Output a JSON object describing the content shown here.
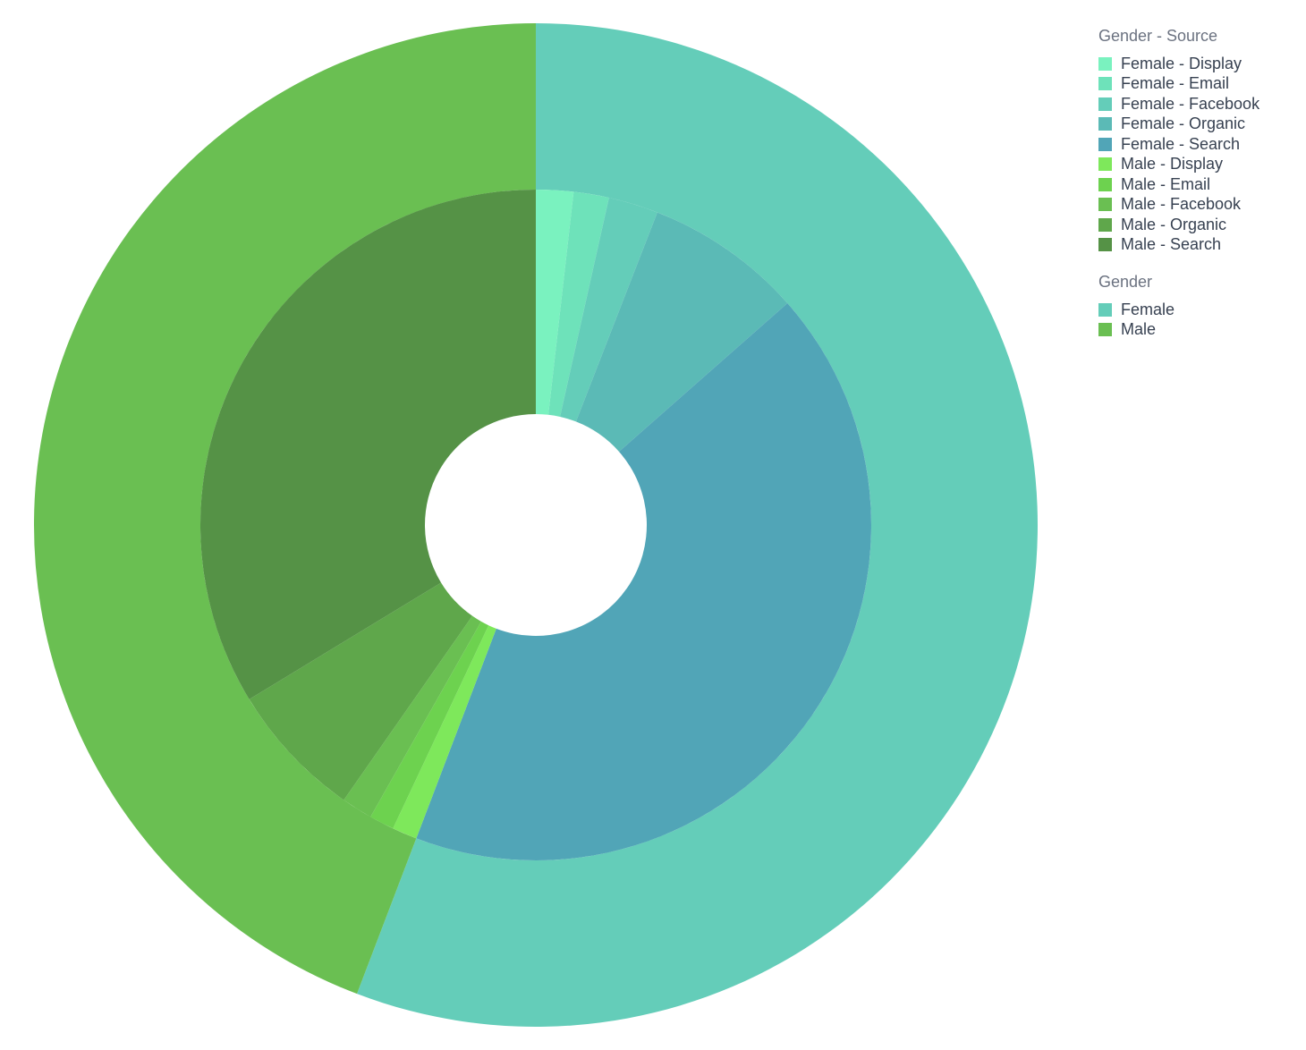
{
  "chart_data": {
    "type": "pie",
    "subtype": "nested-donut",
    "rings": [
      {
        "ring": "outer",
        "legend_title": "Gender",
        "slices": [
          {
            "label": "Female",
            "value": 55.8,
            "color": "#64cdb9"
          },
          {
            "label": "Male",
            "value": 44.2,
            "color": "#6abf52"
          }
        ]
      },
      {
        "ring": "inner",
        "legend_title": "Gender - Source",
        "slices": [
          {
            "label": "Female - Display",
            "value": 1.8,
            "color": "#7af2bf"
          },
          {
            "label": "Female - Email",
            "value": 1.7,
            "color": "#6ee2ba"
          },
          {
            "label": "Female - Facebook",
            "value": 2.4,
            "color": "#64cdb9"
          },
          {
            "label": "Female - Organic",
            "value": 7.6,
            "color": "#5bbab6"
          },
          {
            "label": "Female - Search",
            "value": 42.3,
            "color": "#51a5b7"
          },
          {
            "label": "Male - Display",
            "value": 1.2,
            "color": "#7ee85b"
          },
          {
            "label": "Male - Email",
            "value": 1.2,
            "color": "#6dd24f"
          },
          {
            "label": "Male - Facebook",
            "value": 1.5,
            "color": "#6abf52"
          },
          {
            "label": "Male - Organic",
            "value": 6.6,
            "color": "#5fa74b"
          },
          {
            "label": "Male - Search",
            "value": 33.7,
            "color": "#559246"
          }
        ]
      }
    ],
    "legend_position": "top-right"
  }
}
